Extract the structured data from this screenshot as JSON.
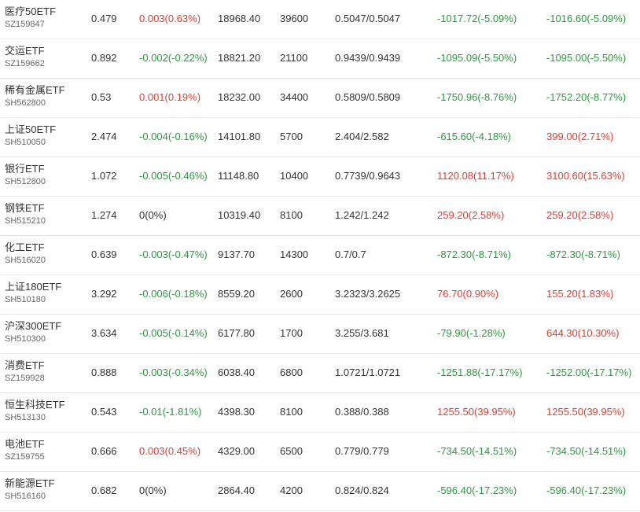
{
  "colors": {
    "up": "#e03c31",
    "down": "#2b9a3e",
    "neutral": "#333333"
  },
  "rows": [
    {
      "name": "医疗50ETF",
      "code": "SZ159847",
      "price": "0.479",
      "change": "0.003(0.63%)",
      "change_dir": "up",
      "amount": "18968.40",
      "volume": "39600",
      "nav": "0.5047/0.5047",
      "p1": "-1017.72(-5.09%)",
      "p1_dir": "down",
      "p2": "-1016.60(-5.09%)",
      "p2_dir": "down"
    },
    {
      "name": "交运ETF",
      "code": "SZ159662",
      "price": "0.892",
      "change": "-0.002(-0.22%)",
      "change_dir": "down",
      "amount": "18821.20",
      "volume": "21100",
      "nav": "0.9439/0.9439",
      "p1": "-1095.09(-5.50%)",
      "p1_dir": "down",
      "p2": "-1095.00(-5.50%)",
      "p2_dir": "down"
    },
    {
      "name": "稀有金属ETF",
      "code": "SH562800",
      "price": "0.53",
      "change": "0.001(0.19%)",
      "change_dir": "up",
      "amount": "18232.00",
      "volume": "34400",
      "nav": "0.5809/0.5809",
      "p1": "-1750.96(-8.76%)",
      "p1_dir": "down",
      "p2": "-1752.20(-8.77%)",
      "p2_dir": "down"
    },
    {
      "name": "上证50ETF",
      "code": "SH510050",
      "price": "2.474",
      "change": "-0.004(-0.16%)",
      "change_dir": "down",
      "amount": "14101.80",
      "volume": "5700",
      "nav": "2.404/2.582",
      "p1": "-615.60(-4.18%)",
      "p1_dir": "down",
      "p2": "399.00(2.71%)",
      "p2_dir": "up"
    },
    {
      "name": "银行ETF",
      "code": "SH512800",
      "price": "1.072",
      "change": "-0.005(-0.46%)",
      "change_dir": "down",
      "amount": "11148.80",
      "volume": "10400",
      "nav": "0.7739/0.9643",
      "p1": "1120.08(11.17%)",
      "p1_dir": "up",
      "p2": "3100.60(15.63%)",
      "p2_dir": "up"
    },
    {
      "name": "钢铁ETF",
      "code": "SH515210",
      "price": "1.274",
      "change": "0(0%)",
      "change_dir": "neutral",
      "amount": "10319.40",
      "volume": "8100",
      "nav": "1.242/1.242",
      "p1": "259.20(2.58%)",
      "p1_dir": "up",
      "p2": "259.20(2.58%)",
      "p2_dir": "up"
    },
    {
      "name": "化工ETF",
      "code": "SH516020",
      "price": "0.639",
      "change": "-0.003(-0.47%)",
      "change_dir": "down",
      "amount": "9137.70",
      "volume": "14300",
      "nav": "0.7/0.7",
      "p1": "-872.30(-8.71%)",
      "p1_dir": "down",
      "p2": "-872.30(-8.71%)",
      "p2_dir": "down"
    },
    {
      "name": "上证180ETF",
      "code": "SH510180",
      "price": "3.292",
      "change": "-0.006(-0.18%)",
      "change_dir": "down",
      "amount": "8559.20",
      "volume": "2600",
      "nav": "3.2323/3.2625",
      "p1": "76.70(0.90%)",
      "p1_dir": "up",
      "p2": "155.20(1.83%)",
      "p2_dir": "up"
    },
    {
      "name": "沪深300ETF",
      "code": "SH510300",
      "price": "3.634",
      "change": "-0.005(-0.14%)",
      "change_dir": "down",
      "amount": "6177.80",
      "volume": "1700",
      "nav": "3.255/3.681",
      "p1": "-79.90(-1.28%)",
      "p1_dir": "down",
      "p2": "644.30(10.30%)",
      "p2_dir": "up"
    },
    {
      "name": "消费ETF",
      "code": "SZ159928",
      "price": "0.888",
      "change": "-0.003(-0.34%)",
      "change_dir": "down",
      "amount": "6038.40",
      "volume": "6800",
      "nav": "1.0721/1.0721",
      "p1": "-1251.88(-17.17%)",
      "p1_dir": "down",
      "p2": "-1252.00(-17.17%)",
      "p2_dir": "down"
    },
    {
      "name": "恒生科技ETF",
      "code": "SH513130",
      "price": "0.543",
      "change": "-0.01(-1.81%)",
      "change_dir": "down",
      "amount": "4398.30",
      "volume": "8100",
      "nav": "0.388/0.388",
      "p1": "1255.50(39.95%)",
      "p1_dir": "up",
      "p2": "1255.50(39.95%)",
      "p2_dir": "up"
    },
    {
      "name": "电池ETF",
      "code": "SZ159755",
      "price": "0.666",
      "change": "0.003(0.45%)",
      "change_dir": "up",
      "amount": "4329.00",
      "volume": "6500",
      "nav": "0.779/0.779",
      "p1": "-734.50(-14.51%)",
      "p1_dir": "down",
      "p2": "-734.50(-14.51%)",
      "p2_dir": "down"
    },
    {
      "name": "新能源ETF",
      "code": "SH516160",
      "price": "0.682",
      "change": "0(0%)",
      "change_dir": "neutral",
      "amount": "2864.40",
      "volume": "4200",
      "nav": "0.824/0.824",
      "p1": "-596.40(-17.23%)",
      "p1_dir": "down",
      "p2": "-596.40(-17.23%)",
      "p2_dir": "down"
    }
  ]
}
